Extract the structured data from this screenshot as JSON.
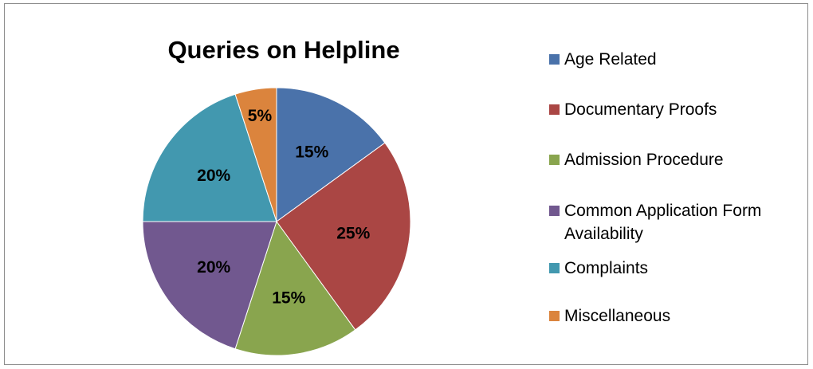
{
  "chart_data": {
    "type": "pie",
    "title": "Queries on Helpline",
    "slices": [
      {
        "label": "Age Related",
        "value": 15,
        "display": "15%",
        "color": "#4a72aa"
      },
      {
        "label": "Documentary Proofs",
        "value": 25,
        "display": "25%",
        "color": "#aa4644"
      },
      {
        "label": "Admission Procedure",
        "value": 15,
        "display": "15%",
        "color": "#89a54e"
      },
      {
        "label": "Common Application Form Availability",
        "value": 20,
        "display": "20%",
        "color": "#71588f"
      },
      {
        "label": "Complaints",
        "value": 20,
        "display": "20%",
        "color": "#4298af"
      },
      {
        "label": "Miscellaneous",
        "value": 5,
        "display": "5%",
        "color": "#db843d"
      }
    ],
    "legend_position": "right"
  }
}
